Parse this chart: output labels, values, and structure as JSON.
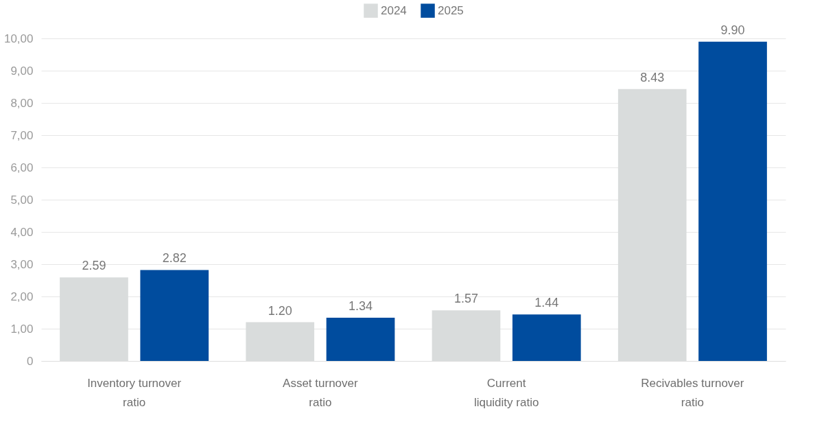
{
  "chart_data": {
    "type": "bar",
    "categories": [
      "Inventory turnover\nratio",
      "Asset turnover\nratio",
      "Current\nliquidity ratio",
      "Recivables turnover\nratio"
    ],
    "series": [
      {
        "name": "2024",
        "color": "#d9dcdc",
        "values": [
          2.59,
          1.2,
          1.57,
          8.43
        ],
        "value_labels": [
          "2.59",
          "1.20",
          "1.57",
          "8.43"
        ]
      },
      {
        "name": "2025",
        "color": "#004c9e",
        "values": [
          2.82,
          1.34,
          1.44,
          9.9
        ],
        "value_labels": [
          "2.82",
          "1.34",
          "1.44",
          "9.90"
        ]
      }
    ],
    "ylim": [
      0,
      10
    ],
    "yticks": [
      0,
      {
        "value": 1,
        "label": "1,00"
      },
      {
        "value": 2,
        "label": "2,00"
      },
      {
        "value": 3,
        "label": "3,00"
      },
      {
        "value": 4,
        "label": "4,00"
      },
      {
        "value": 5,
        "label": "5,00"
      },
      {
        "value": 6,
        "label": "6,00"
      },
      {
        "value": 7,
        "label": "7,00"
      },
      {
        "value": 8,
        "label": "8,00"
      },
      {
        "value": 9,
        "label": "9,00"
      },
      {
        "value": 10,
        "label": "10,00"
      }
    ],
    "grid": "y",
    "legend": "top"
  }
}
